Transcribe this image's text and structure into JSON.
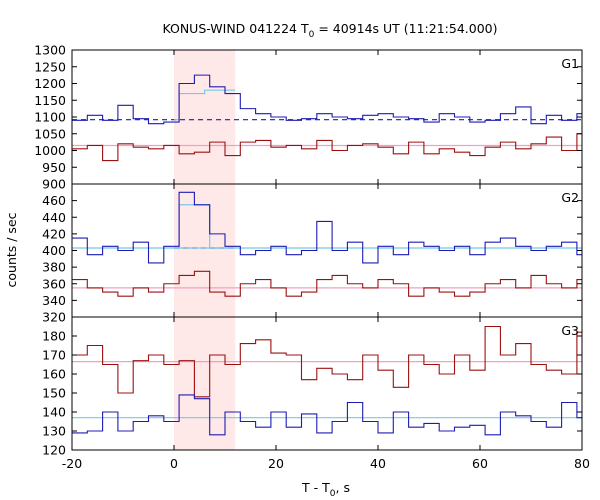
{
  "chart_data": {
    "type": "line",
    "title_main": "KONUS-WIND 041224 T",
    "title_sub": "0",
    "title_rest": " = 40914s UT (11:21:54.000)",
    "xlabel_main": "T - T",
    "xlabel_sub": "0",
    "xlabel_rest": ", s",
    "ylabel": "counts / sec",
    "xlim": [
      -20,
      80
    ],
    "x_ticks": [
      -20,
      0,
      20,
      40,
      60,
      80
    ],
    "x_tick_labels": [
      "-20",
      "0",
      "20",
      "40",
      "60",
      "80"
    ],
    "highlight_interval": [
      0,
      12
    ],
    "colors": {
      "blue": "#1c1cb4",
      "red": "#9c1010",
      "lightblue": "#78c8e8",
      "pink": "#f0a0c4",
      "highlight": "#ffe8e8"
    },
    "panels": [
      {
        "label": "G1",
        "ylim": [
          900,
          1300
        ],
        "y_ticks": [
          900,
          950,
          1000,
          1050,
          1100,
          1150,
          1200,
          1250,
          1300
        ],
        "y_tick_labels": [
          "900",
          "950",
          "1000",
          "1050",
          "1100",
          "1150",
          "1200",
          "1250",
          "1300"
        ],
        "bin_edges": [
          -20,
          -17,
          -14,
          -11,
          -8,
          -5,
          -2,
          1,
          4,
          7,
          10,
          13,
          16,
          19,
          22,
          25,
          28,
          31,
          34,
          37,
          40,
          43,
          46,
          49,
          52,
          55,
          58,
          61,
          64,
          67,
          70,
          73,
          76,
          79,
          80
        ],
        "series": [
          {
            "color": "blue",
            "values": [
              1090,
              1105,
              1090,
              1135,
              1095,
              1080,
              1085,
              1200,
              1225,
              1190,
              1170,
              1125,
              1110,
              1100,
              1090,
              1095,
              1110,
              1100,
              1095,
              1105,
              1110,
              1100,
              1095,
              1085,
              1110,
              1100,
              1085,
              1090,
              1110,
              1130,
              1080,
              1105,
              1090,
              1110
            ]
          },
          {
            "color": "red",
            "values": [
              1005,
              1015,
              970,
              1020,
              1010,
              1005,
              1015,
              990,
              995,
              1025,
              985,
              1025,
              1030,
              1010,
              1015,
              1005,
              1030,
              1000,
              1015,
              1020,
              1010,
              990,
              1025,
              990,
              1005,
              995,
              985,
              1010,
              1025,
              1005,
              1020,
              1040,
              1000,
              1050
            ]
          }
        ],
        "fit_bg": [
          {
            "color": "blue",
            "dashed": true,
            "value": 1092,
            "x_range": [
              -20,
              80
            ]
          },
          {
            "color": "pink",
            "dashed": false,
            "value": 1015,
            "x_range": [
              -20,
              80
            ]
          }
        ],
        "fit_pulse": [
          {
            "color": "lightblue",
            "x_range": [
              0,
              12
            ],
            "bin_edges": [
              0,
              1,
              6,
              12
            ],
            "values": [
              1092,
              1170,
              1180
            ]
          }
        ]
      },
      {
        "label": "G2",
        "ylim": [
          320,
          480
        ],
        "y_ticks": [
          320,
          340,
          360,
          380,
          400,
          420,
          440,
          460
        ],
        "y_tick_labels": [
          "320",
          "340",
          "360",
          "380",
          "400",
          "420",
          "440",
          "460"
        ],
        "bin_edges": [
          -20,
          -17,
          -14,
          -11,
          -8,
          -5,
          -2,
          1,
          4,
          7,
          10,
          13,
          16,
          19,
          22,
          25,
          28,
          31,
          34,
          37,
          40,
          43,
          46,
          49,
          52,
          55,
          58,
          61,
          64,
          67,
          70,
          73,
          76,
          79,
          80
        ],
        "series": [
          {
            "color": "blue",
            "values": [
              415,
              395,
              405,
              400,
              410,
              385,
              405,
              470,
              455,
              420,
              405,
              395,
              400,
              405,
              395,
              400,
              435,
              400,
              410,
              385,
              405,
              395,
              410,
              405,
              400,
              405,
              395,
              410,
              415,
              405,
              400,
              405,
              410,
              395
            ]
          },
          {
            "color": "red",
            "values": [
              365,
              355,
              350,
              345,
              355,
              350,
              360,
              370,
              375,
              350,
              345,
              360,
              365,
              355,
              345,
              350,
              365,
              370,
              360,
              355,
              365,
              360,
              345,
              355,
              350,
              345,
              350,
              360,
              365,
              355,
              370,
              360,
              355,
              365
            ]
          }
        ],
        "fit_bg": [
          {
            "color": "blue",
            "dashed": true,
            "value": 403,
            "x_range": [
              0,
              12
            ]
          },
          {
            "color": "lightblue",
            "dashed": false,
            "value": 403,
            "x_range": [
              -20,
              80
            ]
          },
          {
            "color": "pink",
            "dashed": false,
            "value": 355,
            "x_range": [
              -20,
              80
            ]
          }
        ],
        "fit_pulse": [
          {
            "color": "lightblue",
            "x_range": [
              0,
              12
            ],
            "bin_edges": [
              0,
              1,
              4,
              7,
              12
            ],
            "values": [
              403,
              455,
              455,
              403
            ]
          }
        ]
      },
      {
        "label": "G3",
        "ylim": [
          120,
          190
        ],
        "y_ticks": [
          120,
          130,
          140,
          150,
          160,
          170,
          180
        ],
        "y_tick_labels": [
          "120",
          "130",
          "140",
          "150",
          "160",
          "170",
          "180"
        ],
        "bin_edges": [
          -20,
          -17,
          -14,
          -11,
          -8,
          -5,
          -2,
          1,
          4,
          7,
          10,
          13,
          16,
          19,
          22,
          25,
          28,
          31,
          34,
          37,
          40,
          43,
          46,
          49,
          52,
          55,
          58,
          61,
          64,
          67,
          70,
          73,
          76,
          79,
          80
        ],
        "series": [
          {
            "color": "red",
            "values": [
              170,
              175,
              165,
              150,
              167,
              170,
              165,
              167,
              148,
              170,
              165,
              176,
              178,
              171,
              170,
              157,
              163,
              160,
              157,
              170,
              162,
              153,
              170,
              165,
              160,
              170,
              162,
              185,
              170,
              176,
              165,
              162,
              160,
              182
            ]
          },
          {
            "color": "blue",
            "values": [
              129,
              130,
              140,
              130,
              135,
              138,
              135,
              149,
              147,
              128,
              140,
              135,
              132,
              140,
              132,
              139,
              129,
              135,
              145,
              135,
              129,
              140,
              132,
              134,
              130,
              132,
              133,
              128,
              140,
              138,
              135,
              132,
              145,
              137
            ]
          }
        ],
        "fit_bg": [
          {
            "color": "pink",
            "dashed": false,
            "value": 166.5,
            "x_range": [
              -20,
              80
            ]
          },
          {
            "color": "lightblue",
            "dashed": false,
            "value": 137,
            "x_range": [
              -20,
              80
            ]
          }
        ],
        "fit_pulse": []
      }
    ]
  }
}
